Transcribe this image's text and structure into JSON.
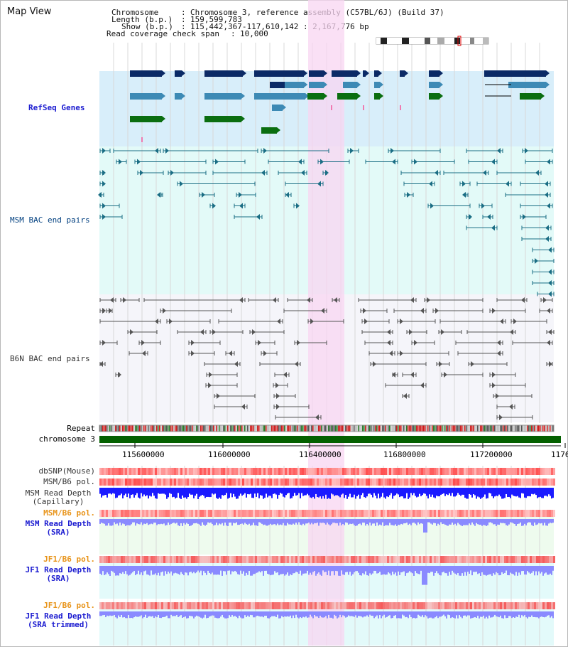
{
  "title": "Map View",
  "header": {
    "chromosome_key": "Chromosome",
    "chromosome_value": "Chromosome 3, reference assembly (C57BL/6J) (Build 37)",
    "length_key": "Length (b.p.)",
    "length_value": "159,599,783",
    "show_key": "Show (b.p.)",
    "show_value": "115,442,367-117,610,142 : 2,167,776 bp",
    "coverage_key": "Read coverage check span",
    "coverage_value": "10,000"
  },
  "tracks": {
    "refseq": "RefSeq Genes",
    "msm_bac": "MSM BAC end pairs",
    "b6n_bac": "B6N BAC end pairs",
    "repeat": "Repeat",
    "chromosome": "chromosome 3",
    "dbsnp": "dbSNP(Mouse)",
    "msm_b6_pol_1": "MSM/B6 pol.",
    "msm_read_depth_cap": "MSM Read Depth\n(Capillary)",
    "msm_b6_pol_2": "MSM/B6 pol.",
    "msm_read_depth_sra": "MSM Read Depth\n(SRA)",
    "jf1_b6_pol_1": "JF1/B6 pol.",
    "jf1_read_depth_sra": "JF1 Read Depth\n(SRA)",
    "jf1_b6_pol_2": "JF1/B6 pol.",
    "jf1_read_depth_trim": "JF1 Read Depth\n(SRA trimmed)"
  },
  "axis": {
    "ticks": [
      "115600000",
      "116000000",
      "116400000",
      "116800000",
      "117200000",
      "1176"
    ]
  },
  "colors": {
    "refseq_bg": "#d8eefa",
    "msm_bg": "#e3faf8",
    "b6n_bg": "#f5f5fa",
    "highlight": "#f8d6f2",
    "gene_dark": "#0b2a66",
    "gene_mid": "#3d8ab5",
    "gene_green": "#0a6e10",
    "chromosome_green": "#046000",
    "msm_label": "#003f7f",
    "bac_msm": "#1a6d84",
    "bac_b6n": "#555555",
    "depth_blue": "#1a1aff",
    "depth_light": "#8a8aff",
    "pol_red": "#ff5050",
    "orange_label": "#e8941a",
    "blue_label": "#1b1bd0"
  }
}
